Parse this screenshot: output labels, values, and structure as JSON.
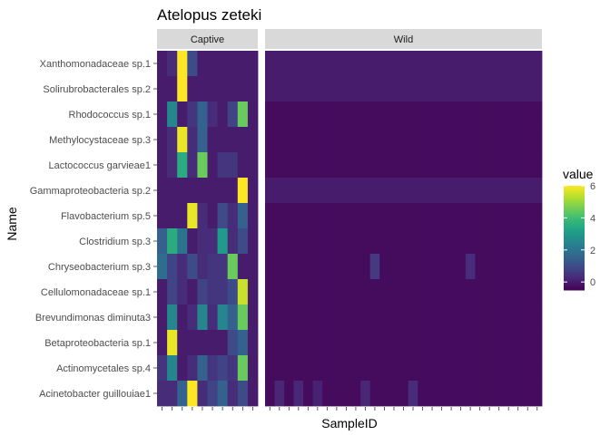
{
  "chart_data": {
    "type": "heatmap",
    "title": "Atelopus zeteki",
    "xlabel": "SampleID",
    "ylabel": "Name",
    "legend": {
      "title": "value",
      "position": "right",
      "ticks": [
        0,
        2,
        4,
        6
      ],
      "range": [
        -0.5,
        6
      ]
    },
    "colors": [
      "#440154",
      "#482878",
      "#3E4A89",
      "#31688E",
      "#26828E",
      "#1F9E89",
      "#35B779",
      "#6DCD59",
      "#B4DE2C",
      "#FDE725"
    ],
    "rows": [
      "Xanthomonadaceae sp.1",
      "Solirubrobacterales sp.2",
      "Rhodococcus sp.1",
      "Methylocystaceae sp.3",
      "Lactococcus garvieae1",
      "Gammaproteobacteria sp.2",
      "Flavobacterium sp.5",
      "Clostridium sp.3",
      "Chryseobacterium sp.3",
      "Cellulomonadaceae sp.1",
      "Brevundimonas  diminuta3",
      "Betaproteobacteria sp.1",
      "Actinomycetales sp.4",
      "Acinetobacter guillouiae1"
    ],
    "facets": [
      {
        "name": "Captive",
        "values": [
          [
            0.0,
            0.3,
            6.0,
            1.0,
            0.0,
            0.0,
            0.0,
            0.0,
            0.0,
            0.0
          ],
          [
            0.0,
            0.0,
            6.0,
            0.0,
            0.0,
            0.0,
            0.0,
            0.0,
            0.0,
            0.0
          ],
          [
            0.0,
            2.5,
            0.0,
            0.5,
            1.5,
            0.3,
            0.0,
            0.8,
            4.5,
            0.0
          ],
          [
            0.0,
            0.3,
            5.8,
            0.3,
            1.5,
            0.0,
            0.0,
            0.0,
            0.0,
            0.0
          ],
          [
            0.0,
            0.3,
            3.5,
            0.3,
            4.5,
            0.0,
            0.5,
            0.5,
            0.0,
            0.0
          ],
          [
            0.0,
            0.0,
            0.0,
            0.0,
            0.0,
            0.0,
            0.0,
            0.0,
            6.0,
            0.0
          ],
          [
            0.0,
            0.0,
            0.0,
            5.8,
            0.3,
            0.0,
            1.0,
            0.3,
            1.5,
            0.0
          ],
          [
            1.5,
            3.5,
            2.0,
            0.0,
            0.3,
            0.3,
            3.0,
            0.3,
            1.0,
            0.0
          ],
          [
            1.8,
            0.8,
            0.3,
            1.0,
            0.3,
            0.5,
            0.5,
            4.5,
            0.0,
            0.0
          ],
          [
            0.0,
            0.8,
            0.3,
            0.0,
            0.8,
            0.5,
            0.5,
            1.0,
            5.5,
            0.0
          ],
          [
            0.0,
            2.5,
            0.0,
            0.3,
            2.5,
            0.3,
            2.5,
            1.5,
            4.5,
            0.0
          ],
          [
            0.0,
            5.8,
            0.0,
            0.0,
            0.0,
            0.0,
            0.0,
            1.0,
            1.5,
            0.0
          ],
          [
            0.5,
            2.5,
            0.0,
            0.3,
            1.5,
            0.5,
            0.8,
            0.5,
            4.5,
            0.0
          ],
          [
            0.3,
            0.3,
            1.5,
            6.0,
            0.3,
            0.8,
            1.5,
            0.3,
            1.0,
            0.0
          ]
        ]
      },
      {
        "name": "Wild",
        "n_samples": 29,
        "base_value": -0.3,
        "row_base": [
          0.0,
          0.0,
          -0.3,
          -0.3,
          -0.3,
          0.0,
          -0.3,
          -0.3,
          -0.3,
          -0.3,
          -0.3,
          -0.3,
          -0.3,
          -0.3
        ],
        "highlights": [
          {
            "row": 8,
            "col": 11,
            "value": 0.6
          },
          {
            "row": 8,
            "col": 21,
            "value": 0.3
          },
          {
            "row": 13,
            "col": 1,
            "value": 0.2
          },
          {
            "row": 13,
            "col": 3,
            "value": 0.2
          },
          {
            "row": 13,
            "col": 5,
            "value": 0.1
          },
          {
            "row": 13,
            "col": 10,
            "value": 0.2
          },
          {
            "row": 13,
            "col": 15,
            "value": 0.3
          }
        ]
      }
    ]
  }
}
